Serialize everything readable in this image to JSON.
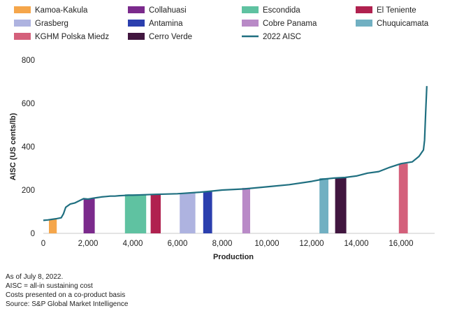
{
  "chart_data": {
    "type": "line",
    "title": "",
    "xlabel": "Production",
    "ylabel": "AISC (US cents/lb)",
    "xlim": [
      0,
      17500
    ],
    "ylim": [
      0,
      800
    ],
    "x_ticks": [
      0,
      2000,
      4000,
      6000,
      8000,
      10000,
      12000,
      14000,
      16000
    ],
    "x_tick_labels": [
      "0",
      "2,000",
      "4,000",
      "6,000",
      "8,000",
      "10,000",
      "12,000",
      "14,000",
      "16,000"
    ],
    "y_ticks": [
      0,
      200,
      400,
      600,
      800
    ],
    "y_tick_labels": [
      "0",
      "200",
      "400",
      "600",
      "800"
    ],
    "curve": {
      "name": "2022 AISC",
      "color": "#1f6f80",
      "x": [
        0,
        200,
        400,
        600,
        800,
        900,
        1000,
        1200,
        1400,
        1600,
        1800,
        2000,
        2200,
        2400,
        2600,
        2800,
        3000,
        3200,
        3400,
        3600,
        3800,
        4000,
        5000,
        6000,
        7000,
        7500,
        8000,
        9000,
        10000,
        11000,
        12000,
        12500,
        13000,
        13500,
        14000,
        14500,
        15000,
        15500,
        16000,
        16500,
        16800,
        17000,
        17050,
        17100,
        17150
      ],
      "y": [
        60,
        62,
        65,
        68,
        72,
        90,
        120,
        135,
        140,
        150,
        160,
        158,
        162,
        165,
        168,
        170,
        172,
        172,
        174,
        175,
        176,
        176,
        180,
        183,
        190,
        195,
        200,
        205,
        215,
        225,
        240,
        250,
        255,
        258,
        265,
        278,
        285,
        305,
        322,
        330,
        355,
        385,
        430,
        560,
        680
      ]
    },
    "bars": [
      {
        "name": "Kamoa-Kakula",
        "x_start": 250,
        "x_end": 600,
        "value": 65,
        "color": "#f5a64b"
      },
      {
        "name": "Collahuasi",
        "x_start": 1800,
        "x_end": 2300,
        "value": 160,
        "color": "#7b2a8c"
      },
      {
        "name": "Escondida",
        "x_start": 3650,
        "x_end": 4600,
        "value": 180,
        "color": "#5fc2a1"
      },
      {
        "name": "El Teniente",
        "x_start": 4800,
        "x_end": 5250,
        "value": 180,
        "color": "#b0214f"
      },
      {
        "name": "Grasberg",
        "x_start": 6100,
        "x_end": 6800,
        "value": 187,
        "color": "#aeb3e0"
      },
      {
        "name": "Antamina",
        "x_start": 7150,
        "x_end": 7550,
        "value": 195,
        "color": "#2b3fae"
      },
      {
        "name": "Cobre Panama",
        "x_start": 8900,
        "x_end": 9250,
        "value": 210,
        "color": "#b98ac7"
      },
      {
        "name": "Chuquicamata",
        "x_start": 12350,
        "x_end": 12750,
        "value": 255,
        "color": "#71b0c2"
      },
      {
        "name": "Cerro Verde",
        "x_start": 13050,
        "x_end": 13550,
        "value": 258,
        "color": "#41163f"
      },
      {
        "name": "KGHM Polska Miedz",
        "x_start": 15900,
        "x_end": 16300,
        "value": 322,
        "color": "#d4607b"
      }
    ],
    "legend": {
      "placement": "top",
      "entries": [
        {
          "label": "Kamoa-Kakula",
          "color": "#f5a64b",
          "kind": "bar"
        },
        {
          "label": "Collahuasi",
          "color": "#7b2a8c",
          "kind": "bar"
        },
        {
          "label": "Escondida",
          "color": "#5fc2a1",
          "kind": "bar"
        },
        {
          "label": "El Teniente",
          "color": "#b0214f",
          "kind": "bar"
        },
        {
          "label": "Grasberg",
          "color": "#aeb3e0",
          "kind": "bar"
        },
        {
          "label": "Antamina",
          "color": "#2b3fae",
          "kind": "bar"
        },
        {
          "label": "Cobre Panama",
          "color": "#b98ac7",
          "kind": "bar"
        },
        {
          "label": "Chuquicamata",
          "color": "#71b0c2",
          "kind": "bar"
        },
        {
          "label": "KGHM Polska Miedz",
          "color": "#d4607b",
          "kind": "bar"
        },
        {
          "label": "Cerro Verde",
          "color": "#41163f",
          "kind": "bar"
        },
        {
          "label": "2022 AISC",
          "color": "#1f6f80",
          "kind": "line"
        }
      ]
    }
  },
  "notes": {
    "as_of": "As of July 8, 2022.",
    "aisc_def": "AISC = all-in sustaining cost",
    "costs": "Costs presented on a co-product basis",
    "source": "Source: S&P Global Market Intelligence"
  }
}
